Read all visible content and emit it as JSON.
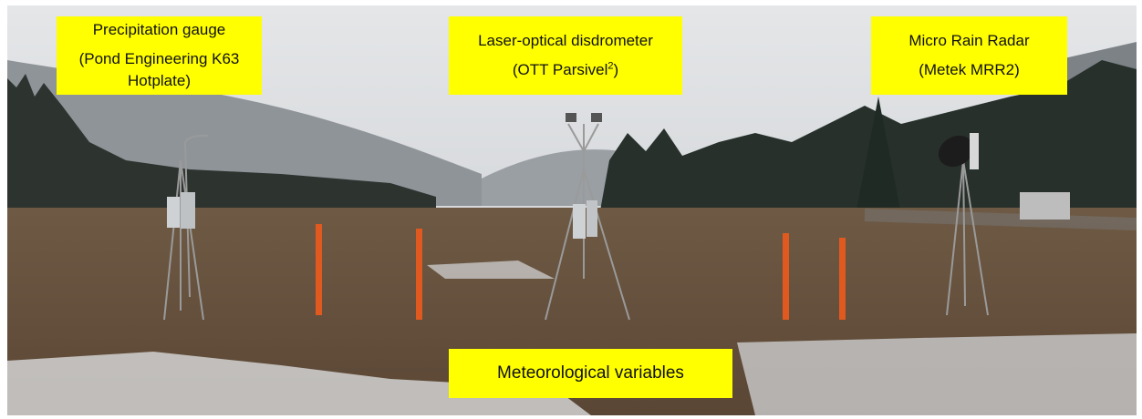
{
  "labels": [
    {
      "title": "Precipitation gauge",
      "subtitle": "(Pond Engineering K63 Hotplate)"
    },
    {
      "title": "Laser-optical disdrometer",
      "subtitle": "(OTT Parsivel",
      "superscript": "2",
      "subtitle_end": ")"
    },
    {
      "title": "Micro Rain Radar",
      "subtitle": "(Metek MRR2)"
    },
    {
      "title": "Meteorological variables"
    }
  ]
}
